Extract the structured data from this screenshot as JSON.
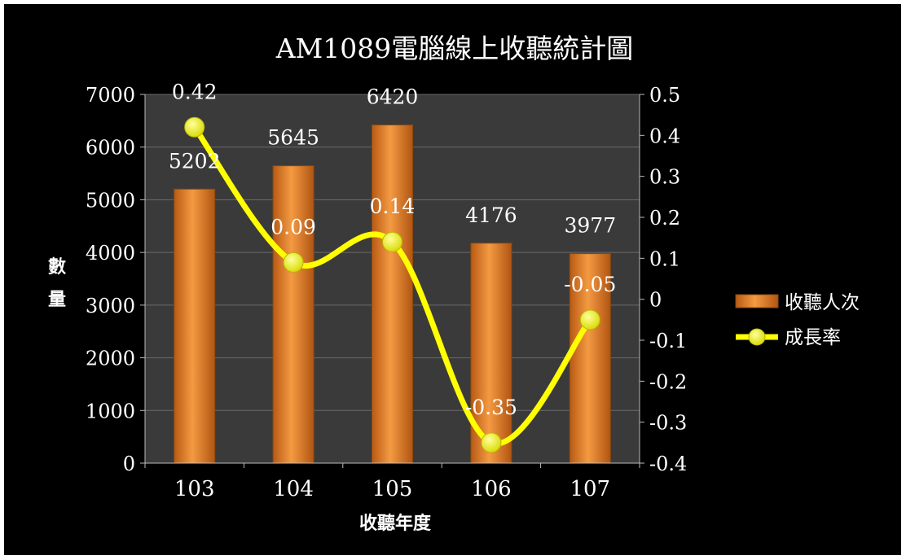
{
  "chart_data": {
    "type": "bar+line",
    "title": "AM1089電腦線上收聽統計圖",
    "xlabel": "收聽年度",
    "ylabel": "數量",
    "categories": [
      "103",
      "104",
      "105",
      "106",
      "107"
    ],
    "y_left": {
      "min": 0,
      "max": 7000,
      "ticks": [
        "0",
        "1000",
        "2000",
        "3000",
        "4000",
        "5000",
        "6000",
        "7000"
      ]
    },
    "y_right": {
      "min": -0.4,
      "max": 0.5,
      "ticks": [
        "-0.4",
        "-0.3",
        "-0.2",
        "-0.1",
        "0",
        "0.1",
        "0.2",
        "0.3",
        "0.4",
        "0.5"
      ]
    },
    "series": [
      {
        "name": "收聽人次",
        "kind": "bar",
        "axis": "left",
        "values": [
          5202,
          5645,
          6420,
          4176,
          3977
        ],
        "labels": [
          "5202",
          "5645",
          "6420",
          "4176",
          "3977"
        ]
      },
      {
        "name": "成長率",
        "kind": "line",
        "axis": "right",
        "values": [
          0.42,
          0.09,
          0.14,
          -0.35,
          -0.05
        ],
        "labels": [
          "0.42",
          "0.09",
          "0.14",
          "-0.35",
          "-0.05"
        ]
      }
    ],
    "grid": true,
    "legend": "right",
    "colors": {
      "background": "#000000",
      "plot_area": "#3a3a3a",
      "bar": "#e98a30",
      "line": "#ffff00",
      "text": "#ffffff"
    }
  }
}
